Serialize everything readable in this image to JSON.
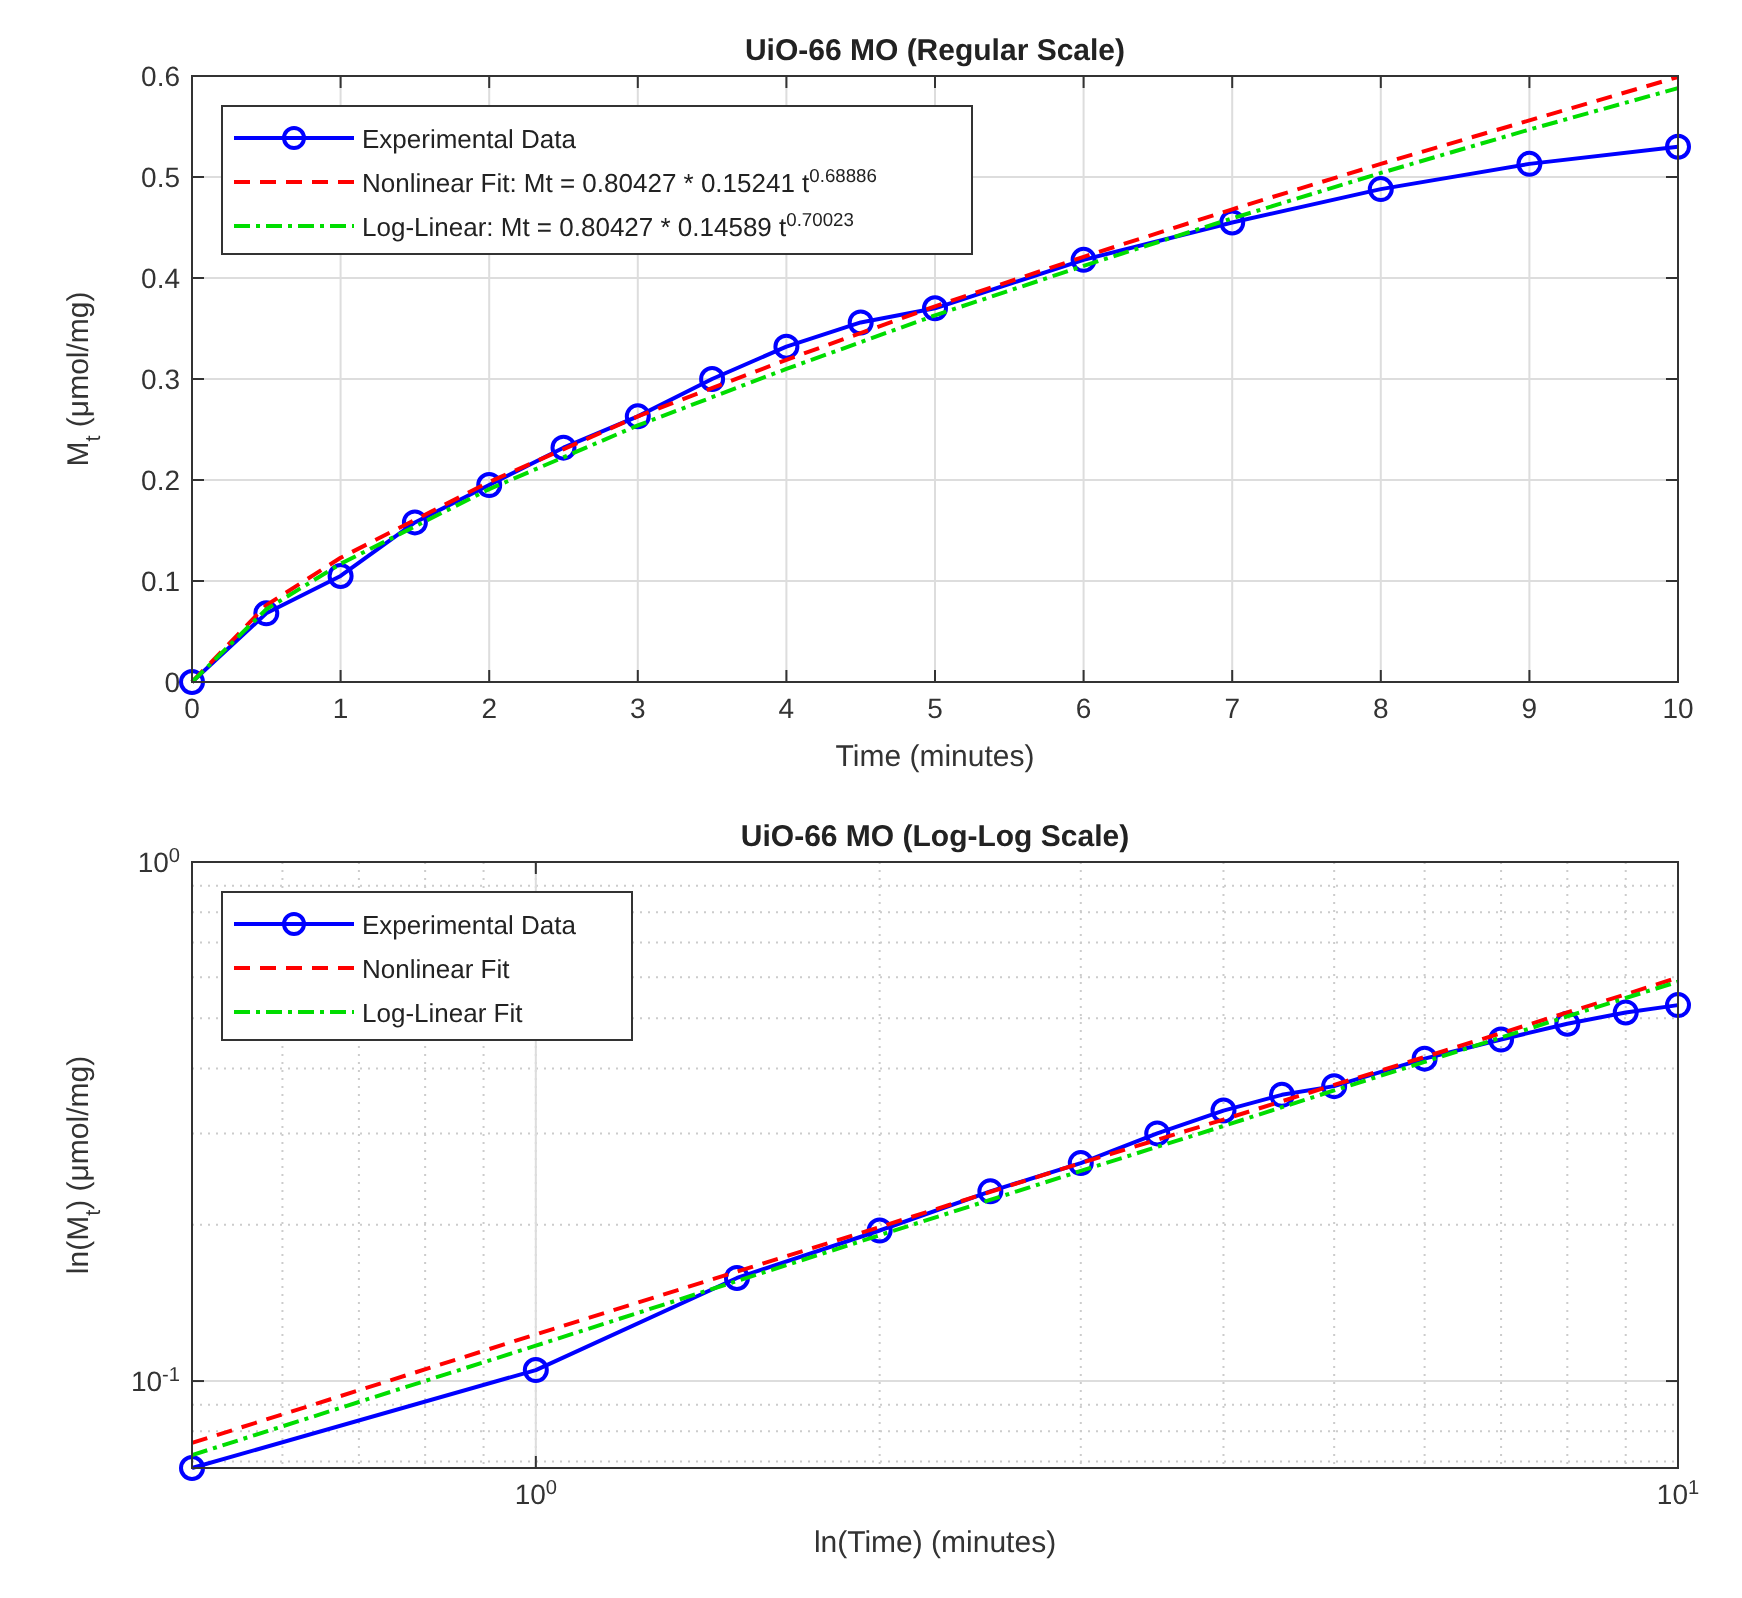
{
  "chart_data": [
    {
      "type": "line",
      "title": "UiO-66 MO (Regular Scale)",
      "xlabel": "Time (minutes)",
      "ylabel": "M$_{t}$ (μmol/mg)",
      "xlim": [
        0,
        10
      ],
      "ylim": [
        0,
        0.6
      ],
      "xticks": [
        0,
        1,
        2,
        3,
        4,
        5,
        6,
        7,
        8,
        9,
        10
      ],
      "yticks": [
        0,
        0.1,
        0.2,
        0.3,
        0.4,
        0.5,
        0.6
      ],
      "grid": true,
      "legend": "top left",
      "series": [
        {
          "name": "Experimental Data",
          "color": "#0000ff",
          "marker": "circle",
          "line_style": "solid",
          "x": [
            0,
            0.5,
            1,
            1.5,
            2,
            2.5,
            3,
            3.5,
            4,
            4.5,
            5,
            6,
            7,
            8,
            9,
            10
          ],
          "values": [
            0,
            0.068,
            0.105,
            0.158,
            0.195,
            0.232,
            0.263,
            0.3,
            0.332,
            0.356,
            0.37,
            0.418,
            0.455,
            0.488,
            0.513,
            0.53
          ]
        },
        {
          "name": "Nonlinear Fit: Mt = 0.80427 * 0.15241 t$^{0.68886}$",
          "color": "#ff0000",
          "marker": "none",
          "line_style": "dashed",
          "x": [
            0,
            0.5,
            1,
            2,
            3,
            4,
            5,
            6,
            7,
            8,
            9,
            10
          ],
          "values": [
            0,
            0.076,
            0.123,
            0.198,
            0.263,
            0.319,
            0.372,
            0.421,
            0.468,
            0.513,
            0.556,
            0.599
          ]
        },
        {
          "name": "Log-Linear: Mt = 0.80427 * 0.14589 t$^{0.70023}$",
          "color": "#00dd00",
          "marker": "none",
          "line_style": "dashdot",
          "x": [
            0,
            0.5,
            1,
            2,
            3,
            4,
            5,
            6,
            7,
            8,
            9,
            10
          ],
          "values": [
            0,
            0.072,
            0.117,
            0.191,
            0.254,
            0.31,
            0.363,
            0.412,
            0.459,
            0.504,
            0.547,
            0.588
          ]
        }
      ]
    },
    {
      "type": "line",
      "title": "UiO-66 MO (Log-Log Scale)",
      "xlabel": "ln(Time) (minutes)",
      "ylabel": "ln(M$_{t}$) (μmol/mg)",
      "log": "xy",
      "xlim": [
        0.5,
        10
      ],
      "ylim": [
        0.068,
        1
      ],
      "xticks": [
        {
          "value": 1,
          "label": "10$^{0}$"
        },
        {
          "value": 10,
          "label": "10$^{1}$"
        }
      ],
      "yticks": [
        {
          "value": 0.1,
          "label": "10$^{-1}$"
        },
        {
          "value": 1,
          "label": "10$^{0}$"
        }
      ],
      "grid": true,
      "legend": "top left",
      "series": [
        {
          "name": "Experimental Data",
          "color": "#0000ff",
          "marker": "circle",
          "line_style": "solid",
          "x": [
            0.5,
            1,
            1.5,
            2,
            2.5,
            3,
            3.5,
            4,
            4.5,
            5,
            6,
            7,
            8,
            9,
            10
          ],
          "values": [
            0.068,
            0.105,
            0.158,
            0.195,
            0.232,
            0.263,
            0.3,
            0.332,
            0.356,
            0.37,
            0.418,
            0.455,
            0.488,
            0.513,
            0.53
          ]
        },
        {
          "name": "Nonlinear Fit",
          "color": "#ff0000",
          "marker": "none",
          "line_style": "dashed",
          "x": [
            0.5,
            1,
            2,
            3,
            4,
            5,
            6,
            7,
            8,
            9,
            10
          ],
          "values": [
            0.076,
            0.123,
            0.198,
            0.263,
            0.319,
            0.372,
            0.421,
            0.468,
            0.513,
            0.556,
            0.599
          ]
        },
        {
          "name": "Log-Linear Fit",
          "color": "#00dd00",
          "marker": "none",
          "line_style": "dashdot",
          "x": [
            0.5,
            1,
            2,
            3,
            4,
            5,
            6,
            7,
            8,
            9,
            10
          ],
          "values": [
            0.072,
            0.117,
            0.191,
            0.254,
            0.31,
            0.363,
            0.412,
            0.459,
            0.504,
            0.547,
            0.588
          ]
        }
      ]
    }
  ]
}
